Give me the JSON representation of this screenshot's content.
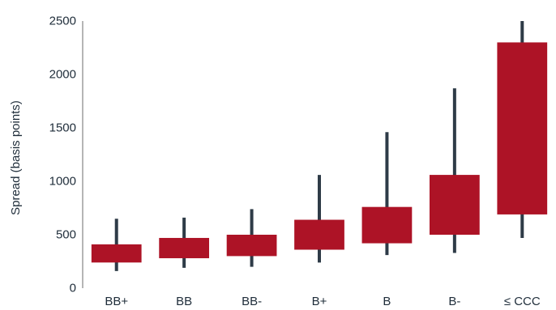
{
  "chart_data": {
    "type": "box",
    "title": "",
    "xlabel": "",
    "ylabel": "Spread (basis points)",
    "ylim": [
      0,
      2500
    ],
    "yticks": [
      0,
      500,
      1000,
      1500,
      2000,
      2500
    ],
    "grid": false,
    "legend": "none",
    "categories": [
      "BB+",
      "BB",
      "BB-",
      "B+",
      "B",
      "B-",
      "≤ CCC"
    ],
    "series": [
      {
        "boxes": [
          {
            "low": 160,
            "q1": 240,
            "q3": 410,
            "high": 650
          },
          {
            "low": 190,
            "q1": 280,
            "q3": 470,
            "high": 660
          },
          {
            "low": 200,
            "q1": 300,
            "q3": 500,
            "high": 740
          },
          {
            "low": 240,
            "q1": 360,
            "q3": 640,
            "high": 1060
          },
          {
            "low": 310,
            "q1": 420,
            "q3": 760,
            "high": 1460
          },
          {
            "low": 330,
            "q1": 500,
            "q3": 1060,
            "high": 1870
          },
          {
            "low": 470,
            "q1": 690,
            "q3": 2300,
            "high": 2500
          }
        ]
      }
    ],
    "colors": {
      "box": "#ad1326",
      "whisker": "#2e3b47",
      "axis": "#6b6b6b",
      "text": "#1f2d3a"
    }
  }
}
